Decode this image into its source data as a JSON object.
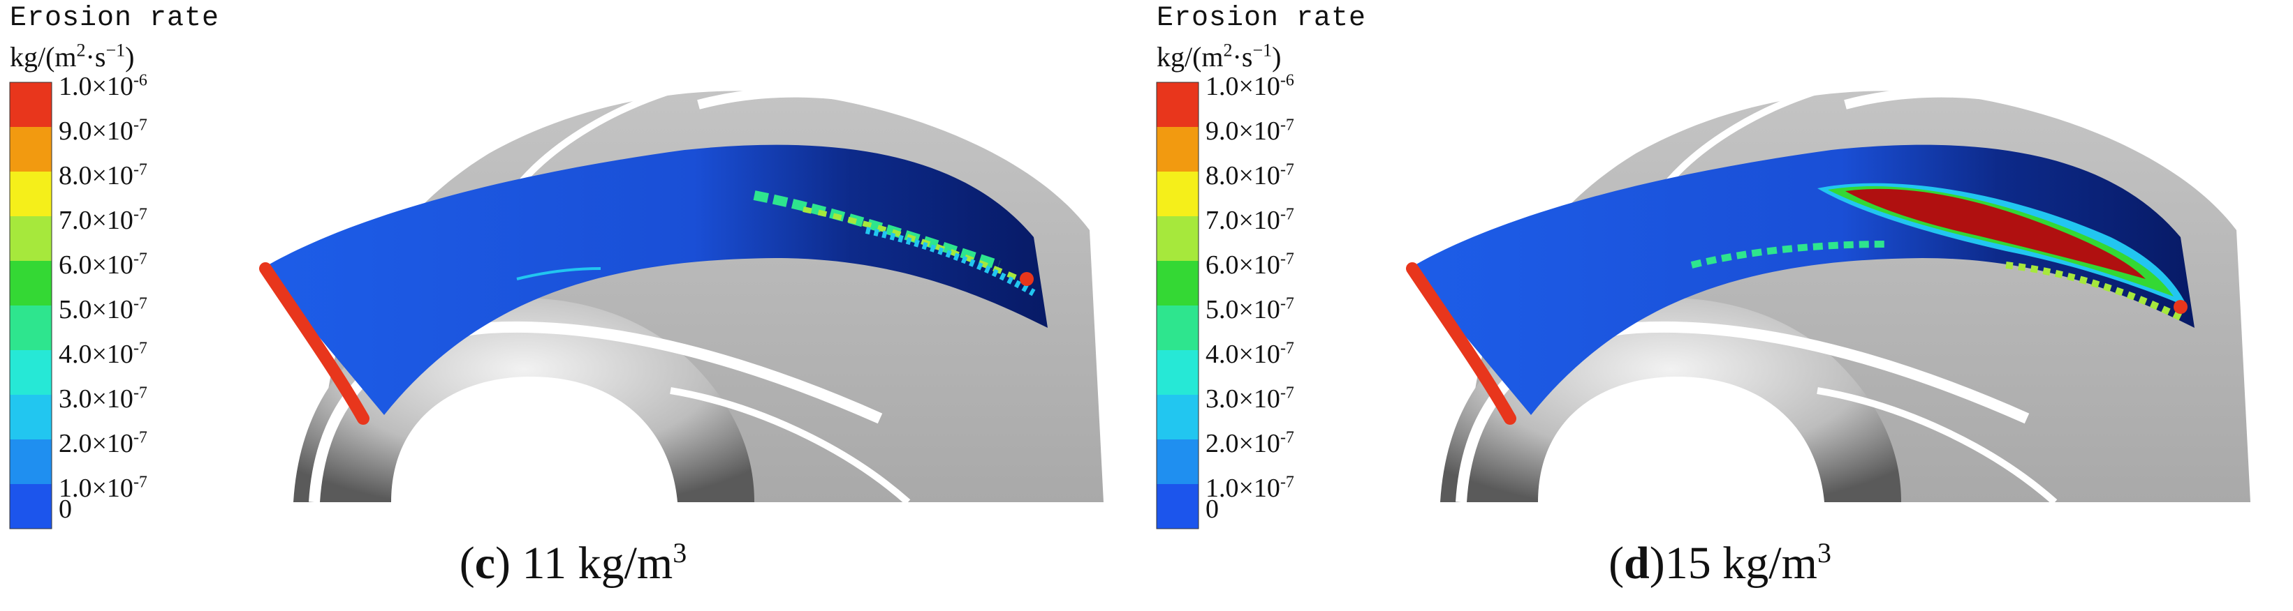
{
  "legend": {
    "title": "Erosion rate",
    "unit_prefix": "kg/(m",
    "unit_exp1": "2",
    "unit_mid": "·s",
    "unit_exp2": "−1",
    "unit_suffix": ")",
    "levels": [
      {
        "mantissa": "1.0×10",
        "exp": "-6",
        "color": "#e8361c"
      },
      {
        "mantissa": "9.0×10",
        "exp": "-7",
        "color": "#f29a10"
      },
      {
        "mantissa": "8.0×10",
        "exp": "-7",
        "color": "#f5ef1a"
      },
      {
        "mantissa": "7.0×10",
        "exp": "-7",
        "color": "#a6e83c"
      },
      {
        "mantissa": "6.0×10",
        "exp": "-7",
        "color": "#34d834"
      },
      {
        "mantissa": "5.0×10",
        "exp": "-7",
        "color": "#2ee58e"
      },
      {
        "mantissa": "4.0×10",
        "exp": "-7",
        "color": "#26e8d6"
      },
      {
        "mantissa": "3.0×10",
        "exp": "-7",
        "color": "#22c6f0"
      },
      {
        "mantissa": "2.0×10",
        "exp": "-7",
        "color": "#1f8ff0"
      },
      {
        "mantissa": "1.0×10",
        "exp": "-7",
        "color": "#1c55ec"
      },
      {
        "mantissa": "0",
        "exp": "",
        "color": ""
      }
    ]
  },
  "panels": [
    {
      "letter": "c",
      "caption_open": "(",
      "caption_close": ")",
      "caption_value": " 11 kg/m",
      "caption_exp": "3"
    },
    {
      "letter": "d",
      "caption_open": "(",
      "caption_close": ")",
      "caption_value": "15 kg/m",
      "caption_exp": "3"
    }
  ]
}
